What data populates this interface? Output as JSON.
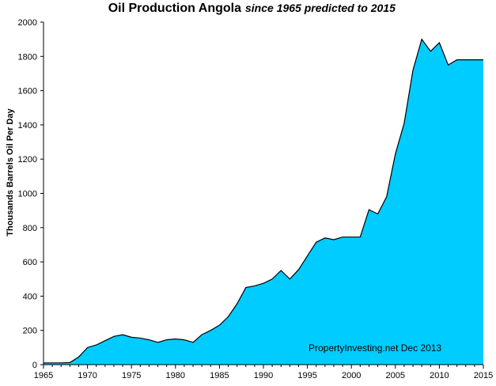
{
  "chart_data": {
    "type": "area",
    "title": "Oil Production Angola",
    "subtitle": "since 1965 predicted to 2015",
    "xlabel": "",
    "ylabel": "Thousands Barrels Oil Per Day",
    "xlim": [
      1965,
      2015
    ],
    "ylim": [
      0,
      2000
    ],
    "x_ticks": [
      1965,
      1970,
      1975,
      1980,
      1985,
      1990,
      1995,
      2000,
      2005,
      2010,
      2015
    ],
    "y_ticks": [
      0,
      200,
      400,
      600,
      800,
      1000,
      1200,
      1400,
      1600,
      1800,
      2000
    ],
    "grid": false,
    "annotation": "PropertyInvesting.net  Dec 2013",
    "fill_color": "#00ccff",
    "line_color": "#000000",
    "x": [
      1965,
      1966,
      1967,
      1968,
      1969,
      1970,
      1971,
      1972,
      1973,
      1974,
      1975,
      1976,
      1977,
      1978,
      1979,
      1980,
      1981,
      1982,
      1983,
      1984,
      1985,
      1986,
      1987,
      1988,
      1989,
      1990,
      1991,
      1992,
      1993,
      1994,
      1995,
      1996,
      1997,
      1998,
      1999,
      2000,
      2001,
      2002,
      2003,
      2004,
      2005,
      2006,
      2007,
      2008,
      2009,
      2010,
      2011,
      2012,
      2013,
      2014,
      2015
    ],
    "values": [
      10,
      10,
      10,
      12,
      45,
      100,
      115,
      140,
      165,
      175,
      160,
      155,
      145,
      130,
      145,
      150,
      145,
      130,
      175,
      200,
      230,
      280,
      355,
      450,
      460,
      475,
      500,
      550,
      500,
      555,
      635,
      715,
      740,
      730,
      745,
      745,
      745,
      905,
      880,
      980,
      1230,
      1410,
      1720,
      1900,
      1830,
      1880,
      1750,
      1780,
      1780,
      1780,
      1780
    ]
  }
}
